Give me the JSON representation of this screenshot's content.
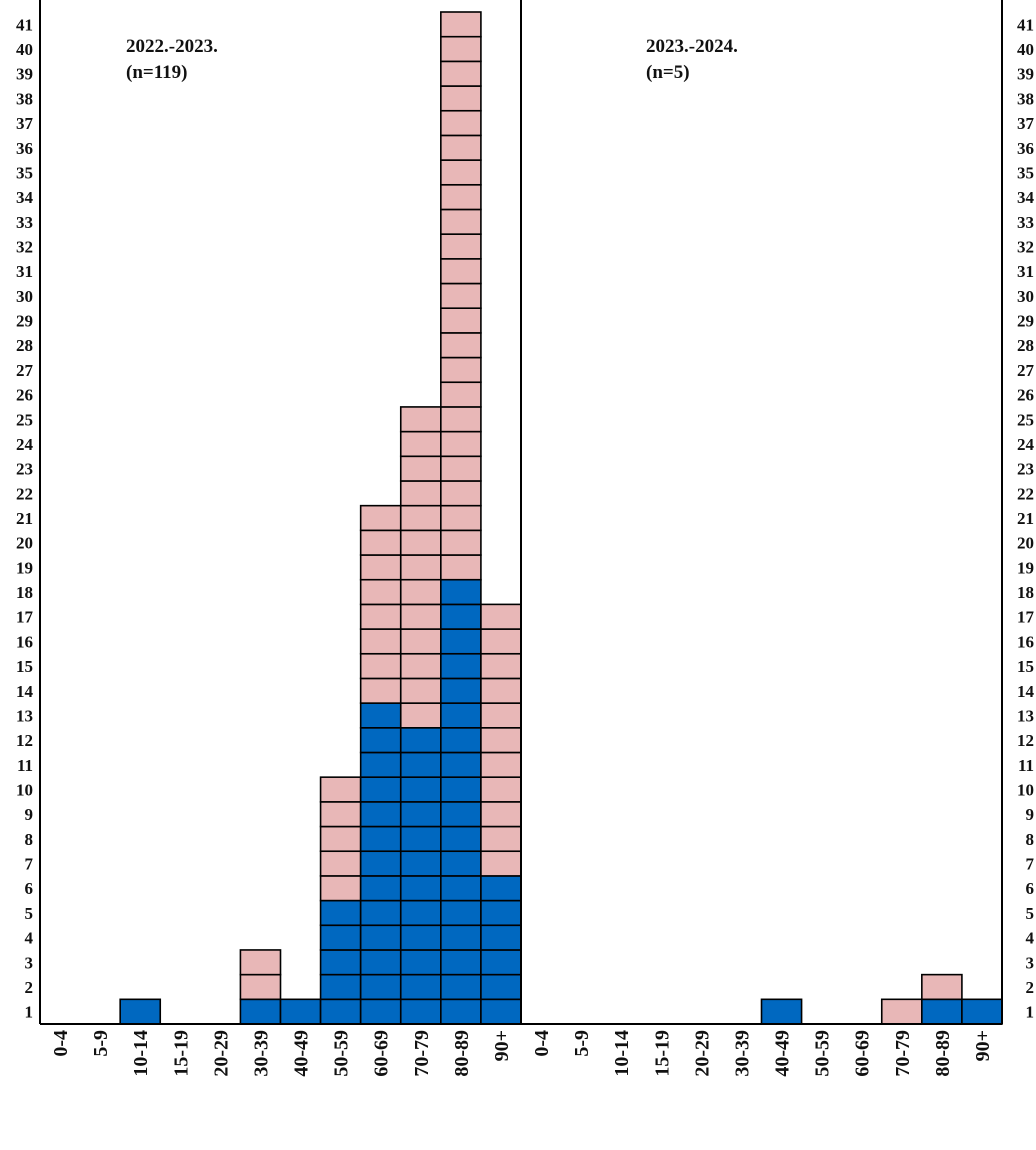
{
  "chart_data": {
    "type": "bar",
    "stacked": true,
    "unit_blocks": true,
    "colors": {
      "blue": "#0068C0",
      "pink": "#E8B7B7",
      "outline": "#000000"
    },
    "ylim": [
      0,
      41
    ],
    "yticks": [
      1,
      2,
      3,
      4,
      5,
      6,
      7,
      8,
      9,
      10,
      11,
      12,
      13,
      14,
      15,
      16,
      17,
      18,
      19,
      20,
      21,
      22,
      23,
      24,
      25,
      26,
      27,
      28,
      29,
      30,
      31,
      32,
      33,
      34,
      35,
      36,
      37,
      38,
      39,
      40,
      41
    ],
    "grid": false,
    "panels": [
      {
        "title": "2022.-2023.",
        "subtitle": "(n=119)",
        "categories": [
          "0-4",
          "5-9",
          "10-14",
          "15-19",
          "20-29",
          "30-39",
          "40-49",
          "50-59",
          "60-69",
          "70-79",
          "80-89",
          "90+"
        ],
        "series": [
          {
            "color": "blue",
            "values": [
              0,
              0,
              1,
              0,
              0,
              1,
              1,
              5,
              13,
              12,
              18,
              6
            ]
          },
          {
            "color": "pink",
            "values": [
              0,
              0,
              0,
              0,
              0,
              2,
              0,
              5,
              8,
              13,
              23,
              11
            ]
          }
        ]
      },
      {
        "title": "2023.-2024.",
        "subtitle": "(n=5)",
        "categories": [
          "0-4",
          "5-9",
          "10-14",
          "15-19",
          "20-29",
          "30-39",
          "40-49",
          "50-59",
          "60-69",
          "70-79",
          "80-89",
          "90+"
        ],
        "series": [
          {
            "color": "blue",
            "values": [
              0,
              0,
              0,
              0,
              0,
              0,
              1,
              0,
              0,
              0,
              1,
              1
            ]
          },
          {
            "color": "pink",
            "values": [
              0,
              0,
              0,
              0,
              0,
              0,
              0,
              0,
              0,
              1,
              1,
              0
            ]
          }
        ]
      }
    ]
  }
}
